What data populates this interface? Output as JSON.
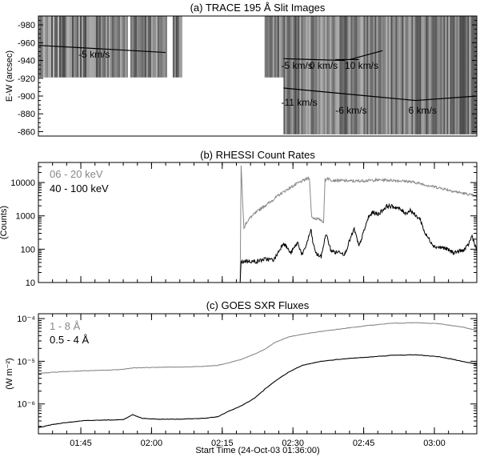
{
  "chart_data": [
    {
      "type": "heatmap",
      "title": "(a) TRACE 195 Å Slit Images",
      "ylabel": "E-W (arcsec)",
      "xlim": [
        0,
        93
      ],
      "ylim": [
        -990,
        -855
      ],
      "yticks": [
        -980,
        -960,
        -940,
        -920,
        -900,
        -880,
        -860
      ],
      "data_windows": [
        {
          "x": [
            0,
            19
          ],
          "y": [
            -990,
            -921
          ]
        },
        {
          "x": [
            19.5,
            27
          ],
          "y": [
            -990,
            -921
          ]
        },
        {
          "x": [
            28.5,
            30.5
          ],
          "y": [
            -990,
            -921
          ]
        },
        {
          "x": [
            48,
            52
          ],
          "y": [
            -990,
            -921
          ]
        },
        {
          "x": [
            52,
            93
          ],
          "y": [
            -990,
            -857
          ]
        }
      ],
      "fits": [
        {
          "label": "-5 km/s",
          "x": [
            0,
            27
          ],
          "y": [
            -957,
            -949
          ],
          "label_pos": [
            8.5,
            -947
          ]
        },
        {
          "label": "-5 km/s",
          "x": [
            52,
            65
          ],
          "y": [
            -942,
            -940
          ],
          "label_pos": [
            51.5,
            -934
          ]
        },
        {
          "label": "0 km/s",
          "x": [
            63,
            68
          ],
          "y": [
            -941,
            -941
          ],
          "label_pos": [
            57.5,
            -934
          ]
        },
        {
          "label": "10 km/s",
          "x": [
            66,
            73
          ],
          "y": [
            -941,
            -951
          ],
          "label_pos": [
            65,
            -934
          ]
        },
        {
          "label": "-11 km/s",
          "x": [
            52,
            70
          ],
          "y": [
            -909,
            -900
          ],
          "label_pos": [
            51.5,
            -893
          ]
        },
        {
          "label": "-6 km/s",
          "x": [
            70,
            80
          ],
          "y": [
            -900,
            -895
          ],
          "label_pos": [
            63,
            -884
          ]
        },
        {
          "label": "6 km/s",
          "x": [
            80,
            93
          ],
          "y": [
            -895,
            -900
          ],
          "label_pos": [
            78.5,
            -884
          ]
        }
      ]
    },
    {
      "type": "line",
      "title": "(b) RHESSI Count Rates",
      "ylabel": "(Counts)",
      "yscale": "log",
      "ylim": [
        10,
        40000
      ],
      "yticks": [
        10,
        100,
        1000,
        10000
      ],
      "yticklabels": [
        "10",
        "100",
        "1000",
        "10000"
      ],
      "legend": "top-left",
      "series": [
        {
          "name": "06 - 20 keV",
          "color": "#888888",
          "x": [
            42.8,
            43.0,
            43.6,
            44.0,
            45,
            47,
            49,
            51,
            53,
            55,
            57,
            57.5,
            57.8,
            58,
            60,
            60.5,
            60.8,
            61,
            61.2,
            62,
            64,
            67,
            70,
            73,
            76,
            78,
            80,
            83,
            86,
            88,
            91,
            93
          ],
          "y": [
            10,
            30000,
            400,
            600,
            900,
            1600,
            2500,
            4200,
            6500,
            9500,
            13000,
            14000,
            2000,
            900,
            750,
            650,
            13000,
            11000,
            14000,
            12000,
            11500,
            11000,
            11500,
            12000,
            11500,
            11000,
            10000,
            8000,
            6500,
            5500,
            4500,
            3800
          ]
        },
        {
          "name": "40 - 100 keV",
          "color": "#000000",
          "x": [
            42.8,
            43.0,
            44,
            46,
            48,
            50,
            52,
            53.5,
            55,
            56,
            57,
            57.8,
            58.3,
            59,
            60,
            61,
            62,
            63,
            64,
            65,
            66,
            67,
            68,
            70,
            71,
            72,
            74,
            76,
            78,
            79,
            80,
            81,
            82,
            84,
            86,
            88,
            90,
            91,
            92,
            93
          ],
          "y": [
            10,
            40,
            45,
            42,
            50,
            48,
            160,
            75,
            160,
            65,
            160,
            380,
            140,
            70,
            60,
            300,
            95,
            80,
            85,
            70,
            180,
            400,
            120,
            900,
            1300,
            1100,
            2000,
            1800,
            1200,
            1500,
            1000,
            800,
            300,
            120,
            110,
            80,
            90,
            120,
            250,
            90
          ]
        }
      ]
    },
    {
      "type": "line",
      "title": "(c) GOES SXR Fluxes",
      "xlabel": "Start Time (24-Oct-03 01:36:00)",
      "ylabel": "(W m⁻²)",
      "yscale": "log",
      "ylim": [
        2e-07,
        0.00013
      ],
      "yticks": [
        1e-06,
        1e-05,
        0.0001
      ],
      "yticklabels": [
        "10⁻⁶",
        "10⁻⁵",
        "10⁻⁴"
      ],
      "xticks": [
        9,
        24,
        39,
        54,
        69,
        84
      ],
      "xticklabels": [
        "01:45",
        "02:00",
        "02:15",
        "02:30",
        "02:45",
        "03:00"
      ],
      "legend": "top-left",
      "series": [
        {
          "name": "1 - 8 Å",
          "color": "#888888",
          "x": [
            0,
            5,
            10,
            15,
            18,
            20,
            25,
            30,
            35,
            38,
            40,
            43,
            46,
            48,
            50,
            53,
            56,
            60,
            65,
            70,
            75,
            80,
            85,
            90,
            93
          ],
          "y": [
            5.2e-06,
            5.7e-06,
            6e-06,
            6.2e-06,
            6.5e-06,
            7e-06,
            7.2e-06,
            7.3e-06,
            7.6e-06,
            8e-06,
            9e-06,
            1.1e-05,
            1.5e-05,
            1.9e-05,
            2.7e-05,
            3.7e-05,
            4.3e-05,
            5e-05,
            5.9e-05,
            6.9e-05,
            7.8e-05,
            8e-05,
            7.6e-05,
            6.3e-05,
            5.3e-05
          ]
        },
        {
          "name": "0.5 - 4 Å",
          "color": "#000000",
          "x": [
            0,
            3,
            6,
            10,
            15,
            18,
            20,
            22,
            25,
            30,
            35,
            38,
            40,
            43,
            46,
            48,
            50,
            53,
            56,
            60,
            65,
            70,
            75,
            80,
            85,
            90,
            93
          ],
          "y": [
            2.8e-07,
            3.3e-07,
            3.7e-07,
            4.1e-07,
            4.2e-07,
            4.3e-07,
            5.6e-07,
            4.6e-07,
            4.4e-07,
            4.4e-07,
            4.6e-07,
            5e-07,
            6.5e-07,
            9e-07,
            1.4e-06,
            2.2e-06,
            3.3e-06,
            5.5e-06,
            8e-06,
            1e-05,
            1.15e-05,
            1.25e-05,
            1.38e-05,
            1.42e-05,
            1.28e-05,
            1e-05,
            8.5e-06
          ]
        }
      ]
    }
  ]
}
